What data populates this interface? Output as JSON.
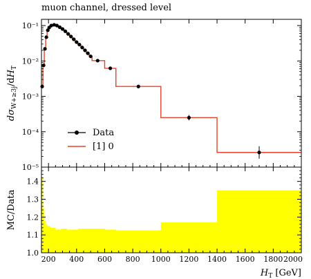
{
  "chart_data": [
    {
      "type": "line",
      "title": "muon channel, dressed level",
      "ylabel": "dσ_W+≥3j / dH_T",
      "yscale": "log",
      "xlim": [
        150,
        2000
      ],
      "ylim": [
        1e-05,
        0.15
      ],
      "yticks": [
        {
          "value": 0.1,
          "label": "10⁻¹"
        },
        {
          "value": 0.01,
          "label": "10⁻²"
        },
        {
          "value": 0.001,
          "label": "10⁻³"
        },
        {
          "value": 0.0001,
          "label": "10⁻⁴"
        },
        {
          "value": 1e-05,
          "label": "10⁻⁵"
        }
      ],
      "legend": {
        "position": "lower-left"
      },
      "series": [
        {
          "name": "Data",
          "style": "markers",
          "color": "#000000",
          "points": [
            {
              "x": 155,
              "y": 0.0019
            },
            {
              "x": 165,
              "y": 0.0075
            },
            {
              "x": 175,
              "y": 0.022
            },
            {
              "x": 185,
              "y": 0.047
            },
            {
              "x": 195,
              "y": 0.074
            },
            {
              "x": 205,
              "y": 0.088
            },
            {
              "x": 220,
              "y": 0.1
            },
            {
              "x": 240,
              "y": 0.105
            },
            {
              "x": 260,
              "y": 0.1
            },
            {
              "x": 280,
              "y": 0.09
            },
            {
              "x": 300,
              "y": 0.08
            },
            {
              "x": 320,
              "y": 0.069
            },
            {
              "x": 340,
              "y": 0.058
            },
            {
              "x": 360,
              "y": 0.049
            },
            {
              "x": 380,
              "y": 0.041
            },
            {
              "x": 400,
              "y": 0.034
            },
            {
              "x": 420,
              "y": 0.029
            },
            {
              "x": 440,
              "y": 0.024
            },
            {
              "x": 460,
              "y": 0.02
            },
            {
              "x": 480,
              "y": 0.0165
            },
            {
              "x": 500,
              "y": 0.0135
            },
            {
              "x": 550,
              "y": 0.0102
            },
            {
              "x": 640,
              "y": 0.0062
            },
            {
              "x": 840,
              "y": 0.0019
            },
            {
              "x": 1200,
              "y": 0.00025
            },
            {
              "x": 1700,
              "y": 2.6e-05
            }
          ]
        },
        {
          "name": "[1] 0",
          "style": "step",
          "color": "#e8412b",
          "bins": [
            {
              "lo": 150,
              "hi": 160,
              "y": 0.0019
            },
            {
              "lo": 160,
              "hi": 170,
              "y": 0.0075
            },
            {
              "lo": 170,
              "hi": 180,
              "y": 0.022
            },
            {
              "lo": 180,
              "hi": 190,
              "y": 0.047
            },
            {
              "lo": 190,
              "hi": 200,
              "y": 0.074
            },
            {
              "lo": 200,
              "hi": 210,
              "y": 0.088
            },
            {
              "lo": 210,
              "hi": 230,
              "y": 0.1
            },
            {
              "lo": 230,
              "hi": 250,
              "y": 0.105
            },
            {
              "lo": 250,
              "hi": 270,
              "y": 0.1
            },
            {
              "lo": 270,
              "hi": 290,
              "y": 0.09
            },
            {
              "lo": 290,
              "hi": 310,
              "y": 0.08
            },
            {
              "lo": 310,
              "hi": 330,
              "y": 0.069
            },
            {
              "lo": 330,
              "hi": 350,
              "y": 0.058
            },
            {
              "lo": 350,
              "hi": 370,
              "y": 0.049
            },
            {
              "lo": 370,
              "hi": 390,
              "y": 0.041
            },
            {
              "lo": 390,
              "hi": 410,
              "y": 0.034
            },
            {
              "lo": 410,
              "hi": 430,
              "y": 0.029
            },
            {
              "lo": 430,
              "hi": 450,
              "y": 0.024
            },
            {
              "lo": 450,
              "hi": 470,
              "y": 0.02
            },
            {
              "lo": 470,
              "hi": 490,
              "y": 0.0165
            },
            {
              "lo": 490,
              "hi": 510,
              "y": 0.0135
            },
            {
              "lo": 510,
              "hi": 600,
              "y": 0.0102
            },
            {
              "lo": 600,
              "hi": 680,
              "y": 0.0062
            },
            {
              "lo": 680,
              "hi": 1000,
              "y": 0.0019
            },
            {
              "lo": 1000,
              "hi": 1400,
              "y": 0.00025
            },
            {
              "lo": 1400,
              "hi": 2000,
              "y": 2.6e-05
            }
          ]
        }
      ]
    },
    {
      "type": "area",
      "ylabel": "MC/Data",
      "xlabel": "H_T [GeV]",
      "xlim": [
        150,
        2000
      ],
      "ylim": [
        1.0,
        1.48
      ],
      "xticks": [
        200,
        400,
        600,
        800,
        1000,
        1200,
        1400,
        1600,
        1800,
        2000
      ],
      "yticks": [
        "1.0",
        "1.1",
        "1.2",
        "1.3",
        "1.4"
      ],
      "band_color": "#ffff00",
      "bands": [
        {
          "lo": 150,
          "hi": 160,
          "y": 1.42
        },
        {
          "lo": 160,
          "hi": 170,
          "y": 1.25
        },
        {
          "lo": 170,
          "hi": 180,
          "y": 1.18
        },
        {
          "lo": 180,
          "hi": 190,
          "y": 1.16
        },
        {
          "lo": 190,
          "hi": 210,
          "y": 1.15
        },
        {
          "lo": 210,
          "hi": 250,
          "y": 1.14
        },
        {
          "lo": 250,
          "hi": 290,
          "y": 1.13
        },
        {
          "lo": 290,
          "hi": 330,
          "y": 1.135
        },
        {
          "lo": 330,
          "hi": 410,
          "y": 1.13
        },
        {
          "lo": 410,
          "hi": 510,
          "y": 1.135
        },
        {
          "lo": 510,
          "hi": 600,
          "y": 1.135
        },
        {
          "lo": 600,
          "hi": 680,
          "y": 1.13
        },
        {
          "lo": 680,
          "hi": 1000,
          "y": 1.125
        },
        {
          "lo": 1000,
          "hi": 1400,
          "y": 1.17
        },
        {
          "lo": 1400,
          "hi": 2000,
          "y": 1.35
        }
      ]
    }
  ]
}
